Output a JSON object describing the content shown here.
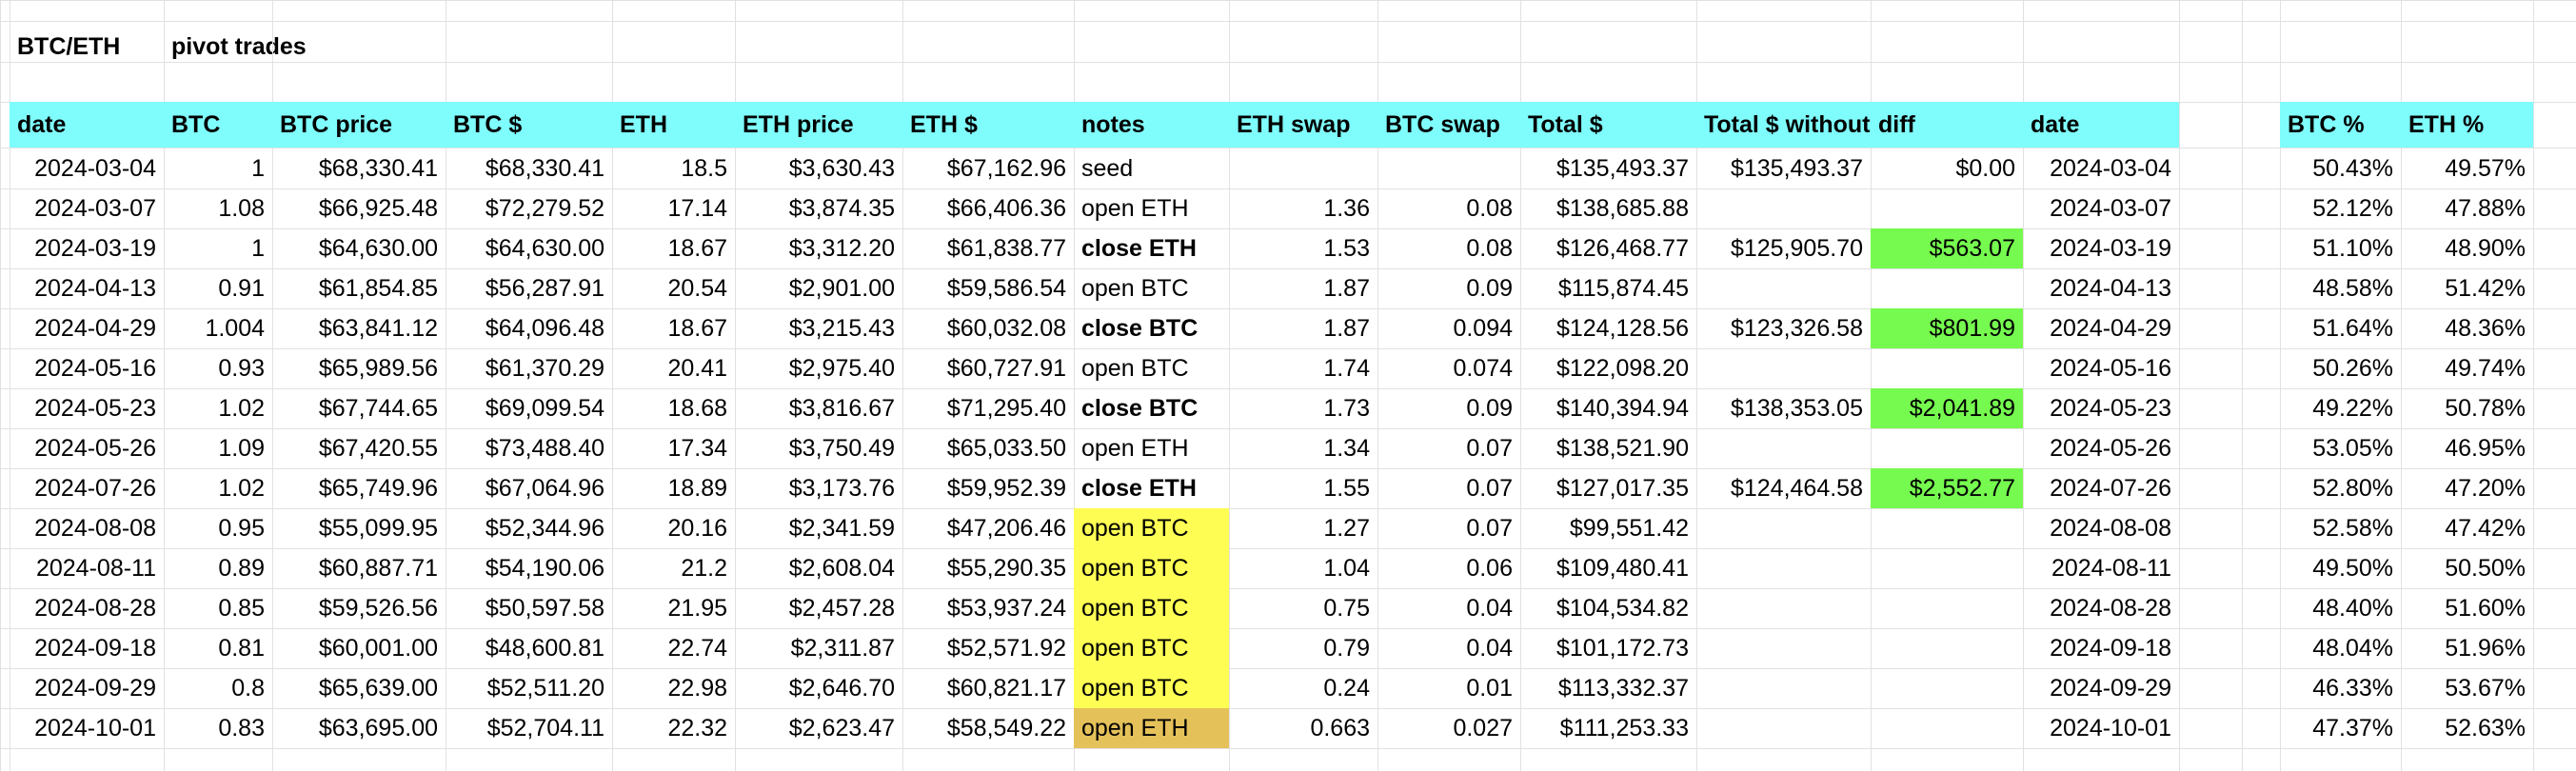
{
  "sheet": {
    "title_left": "BTC/ETH",
    "title_right": "pivot trades",
    "headers": {
      "date": "date",
      "btc": "BTC",
      "btc_price": "BTC price",
      "btc_usd": "BTC $",
      "eth": "ETH",
      "eth_price": "ETH price",
      "eth_usd": "ETH $",
      "notes": "notes",
      "eth_swap": "ETH swap",
      "btc_swap": "BTC swap",
      "total": "Total $",
      "total_without": "Total $ without",
      "diff": "diff",
      "date2": "date",
      "btc_pct": "BTC %",
      "eth_pct": "ETH %"
    },
    "colors": {
      "header_cyan": "#7ffcfc",
      "highlight_yellow": "#fdfd54",
      "highlight_gold": "#e5c15a",
      "highlight_green": "#76fa4f"
    },
    "rows": [
      {
        "date": "2024-03-04",
        "btc": "1",
        "btc_price": "$68,330.41",
        "btc_usd": "$68,330.41",
        "eth": "18.5",
        "eth_price": "$3,630.43",
        "eth_usd": "$67,162.96",
        "notes": "seed",
        "notes_bold": false,
        "notes_fill": "",
        "eth_swap": "",
        "btc_swap": "",
        "total": "$135,493.37",
        "total_without": "$135,493.37",
        "diff": "$0.00",
        "diff_fill": "",
        "date2": "2024-03-04",
        "btc_pct": "50.43%",
        "eth_pct": "49.57%"
      },
      {
        "date": "2024-03-07",
        "btc": "1.08",
        "btc_price": "$66,925.48",
        "btc_usd": "$72,279.52",
        "eth": "17.14",
        "eth_price": "$3,874.35",
        "eth_usd": "$66,406.36",
        "notes": "open ETH",
        "notes_bold": false,
        "notes_fill": "",
        "eth_swap": "1.36",
        "btc_swap": "0.08",
        "total": "$138,685.88",
        "total_without": "",
        "diff": "",
        "diff_fill": "",
        "date2": "2024-03-07",
        "btc_pct": "52.12%",
        "eth_pct": "47.88%"
      },
      {
        "date": "2024-03-19",
        "btc": "1",
        "btc_price": "$64,630.00",
        "btc_usd": "$64,630.00",
        "eth": "18.67",
        "eth_price": "$3,312.20",
        "eth_usd": "$61,838.77",
        "notes": "close ETH",
        "notes_bold": true,
        "notes_fill": "",
        "eth_swap": "1.53",
        "btc_swap": "0.08",
        "total": "$126,468.77",
        "total_without": "$125,905.70",
        "diff": "$563.07",
        "diff_fill": "green",
        "date2": "2024-03-19",
        "btc_pct": "51.10%",
        "eth_pct": "48.90%"
      },
      {
        "date": "2024-04-13",
        "btc": "0.91",
        "btc_price": "$61,854.85",
        "btc_usd": "$56,287.91",
        "eth": "20.54",
        "eth_price": "$2,901.00",
        "eth_usd": "$59,586.54",
        "notes": "open BTC",
        "notes_bold": false,
        "notes_fill": "",
        "eth_swap": "1.87",
        "btc_swap": "0.09",
        "total": "$115,874.45",
        "total_without": "",
        "diff": "",
        "diff_fill": "",
        "date2": "2024-04-13",
        "btc_pct": "48.58%",
        "eth_pct": "51.42%"
      },
      {
        "date": "2024-04-29",
        "btc": "1.004",
        "btc_price": "$63,841.12",
        "btc_usd": "$64,096.48",
        "eth": "18.67",
        "eth_price": "$3,215.43",
        "eth_usd": "$60,032.08",
        "notes": "close BTC",
        "notes_bold": true,
        "notes_fill": "",
        "eth_swap": "1.87",
        "btc_swap": "0.094",
        "total": "$124,128.56",
        "total_without": "$123,326.58",
        "diff": "$801.99",
        "diff_fill": "green",
        "date2": "2024-04-29",
        "btc_pct": "51.64%",
        "eth_pct": "48.36%"
      },
      {
        "date": "2024-05-16",
        "btc": "0.93",
        "btc_price": "$65,989.56",
        "btc_usd": "$61,370.29",
        "eth": "20.41",
        "eth_price": "$2,975.40",
        "eth_usd": "$60,727.91",
        "notes": "open BTC",
        "notes_bold": false,
        "notes_fill": "",
        "eth_swap": "1.74",
        "btc_swap": "0.074",
        "total": "$122,098.20",
        "total_without": "",
        "diff": "",
        "diff_fill": "",
        "date2": "2024-05-16",
        "btc_pct": "50.26%",
        "eth_pct": "49.74%"
      },
      {
        "date": "2024-05-23",
        "btc": "1.02",
        "btc_price": "$67,744.65",
        "btc_usd": "$69,099.54",
        "eth": "18.68",
        "eth_price": "$3,816.67",
        "eth_usd": "$71,295.40",
        "notes": "close BTC",
        "notes_bold": true,
        "notes_fill": "",
        "eth_swap": "1.73",
        "btc_swap": "0.09",
        "total": "$140,394.94",
        "total_without": "$138,353.05",
        "diff": "$2,041.89",
        "diff_fill": "green",
        "date2": "2024-05-23",
        "btc_pct": "49.22%",
        "eth_pct": "50.78%"
      },
      {
        "date": "2024-05-26",
        "btc": "1.09",
        "btc_price": "$67,420.55",
        "btc_usd": "$73,488.40",
        "eth": "17.34",
        "eth_price": "$3,750.49",
        "eth_usd": "$65,033.50",
        "notes": "open ETH",
        "notes_bold": false,
        "notes_fill": "",
        "eth_swap": "1.34",
        "btc_swap": "0.07",
        "total": "$138,521.90",
        "total_without": "",
        "diff": "",
        "diff_fill": "",
        "date2": "2024-05-26",
        "btc_pct": "53.05%",
        "eth_pct": "46.95%"
      },
      {
        "date": "2024-07-26",
        "btc": "1.02",
        "btc_price": "$65,749.96",
        "btc_usd": "$67,064.96",
        "eth": "18.89",
        "eth_price": "$3,173.76",
        "eth_usd": "$59,952.39",
        "notes": "close ETH",
        "notes_bold": true,
        "notes_fill": "",
        "eth_swap": "1.55",
        "btc_swap": "0.07",
        "total": "$127,017.35",
        "total_without": "$124,464.58",
        "diff": "$2,552.77",
        "diff_fill": "green",
        "date2": "2024-07-26",
        "btc_pct": "52.80%",
        "eth_pct": "47.20%"
      },
      {
        "date": "2024-08-08",
        "btc": "0.95",
        "btc_price": "$55,099.95",
        "btc_usd": "$52,344.96",
        "eth": "20.16",
        "eth_price": "$2,341.59",
        "eth_usd": "$47,206.46",
        "notes": "open BTC",
        "notes_bold": false,
        "notes_fill": "yellow",
        "eth_swap": "1.27",
        "btc_swap": "0.07",
        "total": "$99,551.42",
        "total_without": "",
        "diff": "",
        "diff_fill": "",
        "date2": "2024-08-08",
        "btc_pct": "52.58%",
        "eth_pct": "47.42%"
      },
      {
        "date": "2024-08-11",
        "btc": "0.89",
        "btc_price": "$60,887.71",
        "btc_usd": "$54,190.06",
        "eth": "21.2",
        "eth_price": "$2,608.04",
        "eth_usd": "$55,290.35",
        "notes": "open BTC",
        "notes_bold": false,
        "notes_fill": "yellow",
        "eth_swap": "1.04",
        "btc_swap": "0.06",
        "total": "$109,480.41",
        "total_without": "",
        "diff": "",
        "diff_fill": "",
        "date2": "2024-08-11",
        "btc_pct": "49.50%",
        "eth_pct": "50.50%"
      },
      {
        "date": "2024-08-28",
        "btc": "0.85",
        "btc_price": "$59,526.56",
        "btc_usd": "$50,597.58",
        "eth": "21.95",
        "eth_price": "$2,457.28",
        "eth_usd": "$53,937.24",
        "notes": "open BTC",
        "notes_bold": false,
        "notes_fill": "yellow",
        "eth_swap": "0.75",
        "btc_swap": "0.04",
        "total": "$104,534.82",
        "total_without": "",
        "diff": "",
        "diff_fill": "",
        "date2": "2024-08-28",
        "btc_pct": "48.40%",
        "eth_pct": "51.60%"
      },
      {
        "date": "2024-09-18",
        "btc": "0.81",
        "btc_price": "$60,001.00",
        "btc_usd": "$48,600.81",
        "eth": "22.74",
        "eth_price": "$2,311.87",
        "eth_usd": "$52,571.92",
        "notes": "open BTC",
        "notes_bold": false,
        "notes_fill": "yellow",
        "eth_swap": "0.79",
        "btc_swap": "0.04",
        "total": "$101,172.73",
        "total_without": "",
        "diff": "",
        "diff_fill": "",
        "date2": "2024-09-18",
        "btc_pct": "48.04%",
        "eth_pct": "51.96%"
      },
      {
        "date": "2024-09-29",
        "btc": "0.8",
        "btc_price": "$65,639.00",
        "btc_usd": "$52,511.20",
        "eth": "22.98",
        "eth_price": "$2,646.70",
        "eth_usd": "$60,821.17",
        "notes": "open BTC",
        "notes_bold": false,
        "notes_fill": "yellow",
        "eth_swap": "0.24",
        "btc_swap": "0.01",
        "total": "$113,332.37",
        "total_without": "",
        "diff": "",
        "diff_fill": "",
        "date2": "2024-09-29",
        "btc_pct": "46.33%",
        "eth_pct": "53.67%"
      },
      {
        "date": "2024-10-01",
        "btc": "0.83",
        "btc_price": "$63,695.00",
        "btc_usd": "$52,704.11",
        "eth": "22.32",
        "eth_price": "$2,623.47",
        "eth_usd": "$58,549.22",
        "notes": "open ETH",
        "notes_bold": false,
        "notes_fill": "gold",
        "eth_swap": "0.663",
        "btc_swap": "0.027",
        "total": "$111,253.33",
        "total_without": "",
        "diff": "",
        "diff_fill": "",
        "date2": "2024-10-01",
        "btc_pct": "47.37%",
        "eth_pct": "52.63%"
      }
    ]
  }
}
